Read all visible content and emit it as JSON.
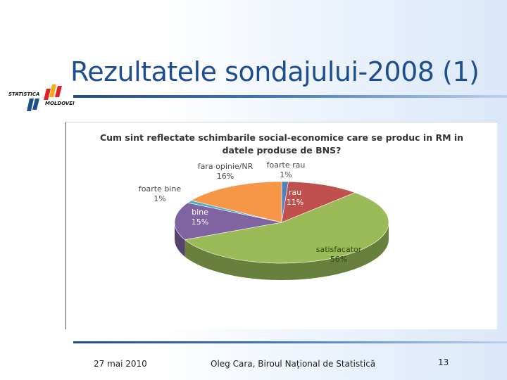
{
  "slide": {
    "title": "Rezultatele sondajului-2008 (1)",
    "footer_date": "27 mai 2010",
    "footer_author": "Oleg Cara, Biroul Naţional de Statistică",
    "page_number": "13"
  },
  "logo": {
    "line1": "STATISTICA",
    "line2": "MOLDOVEI",
    "colors": [
      "#e31e24",
      "#f7a81b",
      "#1f4e8c"
    ]
  },
  "chart_data": {
    "type": "pie",
    "title_line1": "Cum sint reflectate schimbarile social-economice care se produc in RM in",
    "title_line2": "datele produse  de BNS?",
    "slices": [
      {
        "label": "foarte rau",
        "value": 1,
        "pct_label": "1%",
        "color": "#4f81bd"
      },
      {
        "label": "rau",
        "value": 11,
        "pct_label": "11%",
        "color": "#c0504d"
      },
      {
        "label": "satisfacator",
        "value": 56,
        "pct_label": "56%",
        "color": "#9bbb59"
      },
      {
        "label": "bine",
        "value": 15,
        "pct_label": "15%",
        "color": "#8064a2"
      },
      {
        "label": "foarte bine",
        "value": 1,
        "pct_label": "1%",
        "color": "#4bacc6"
      },
      {
        "label": "fara opinie/NR",
        "value": 16,
        "pct_label": "16%",
        "color": "#f79646"
      }
    ]
  }
}
